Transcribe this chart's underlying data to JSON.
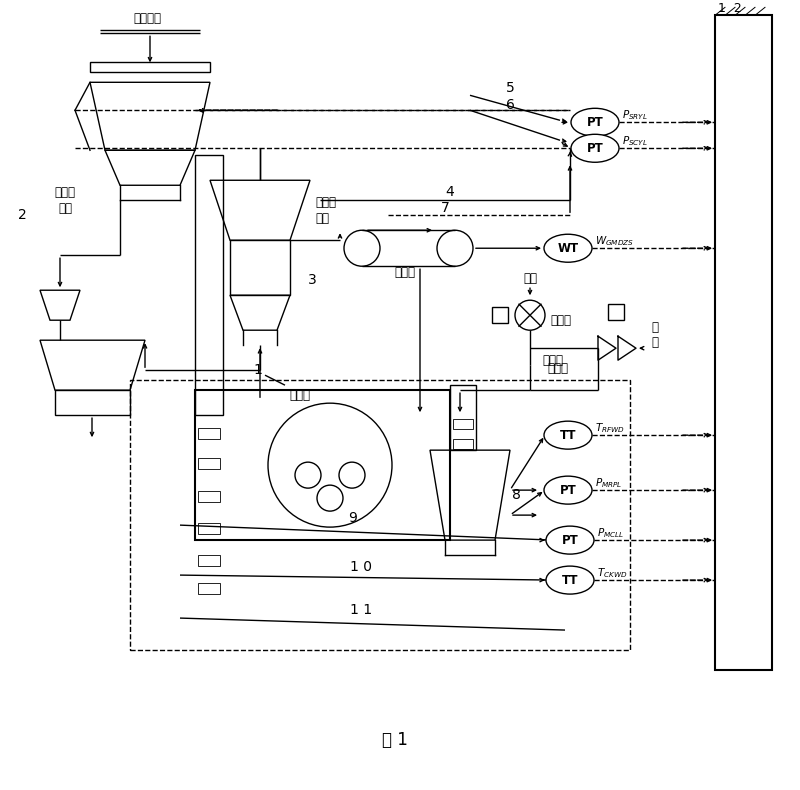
{
  "title": "图 1",
  "bg": "#ffffff",
  "labels": {
    "compressed_air": "压缩空气",
    "bag_collector": "布袋收\n集器",
    "separator": "粗粉分\n离器",
    "ball_mill": "球磨机",
    "feeder": "给煤机",
    "cold_wind": "冷风",
    "cold_wind_door": "冷风门",
    "hot_wind": "热\n风",
    "hot_wind_door": "热风门",
    "p_sryl": "$P_{SRYL}$",
    "p_scyl": "$P_{SCYL}$",
    "w_gmdzs": "$W_{GMDZS}$",
    "t_rfwd": "$T_{RFWD}$",
    "p_mrpl": "$P_{MRPL}$",
    "p_mcll": "$P_{MCLL}$",
    "t_ckwd": "$T_{CKWD}$"
  }
}
